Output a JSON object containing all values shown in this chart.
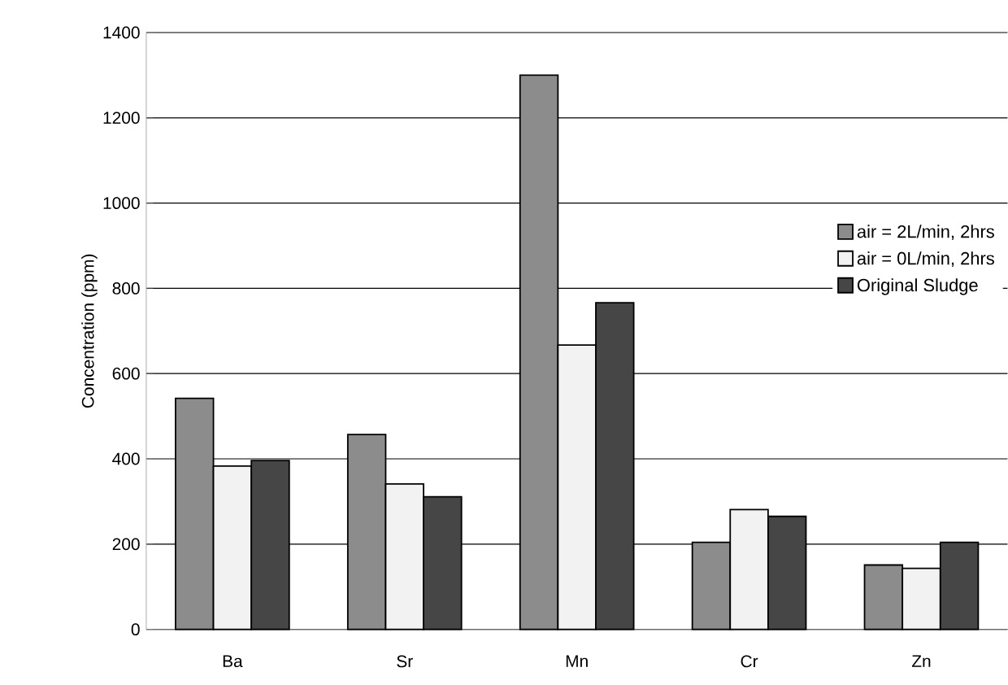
{
  "chart_data": {
    "type": "bar",
    "ylabel": "Concentration (ppm)",
    "categories": [
      "Ba",
      "Sr",
      "Mn",
      "Cr",
      "Zn"
    ],
    "series": [
      {
        "name": "air = 2L/min, 2hrs",
        "color": "#8c8c8c",
        "values": [
          542,
          457,
          1300,
          204,
          151
        ]
      },
      {
        "name": "air = 0L/min, 2hrs",
        "color": "#f2f2f2",
        "values": [
          383,
          341,
          667,
          281,
          143
        ]
      },
      {
        "name": "Original Sludge",
        "color": "#464646",
        "values": [
          396,
          311,
          766,
          265,
          204
        ]
      }
    ],
    "ylim": [
      0,
      1400
    ],
    "yticks": [
      0,
      200,
      400,
      600,
      800,
      1000,
      1200,
      1400
    ],
    "grid": "y",
    "legend": "right"
  }
}
